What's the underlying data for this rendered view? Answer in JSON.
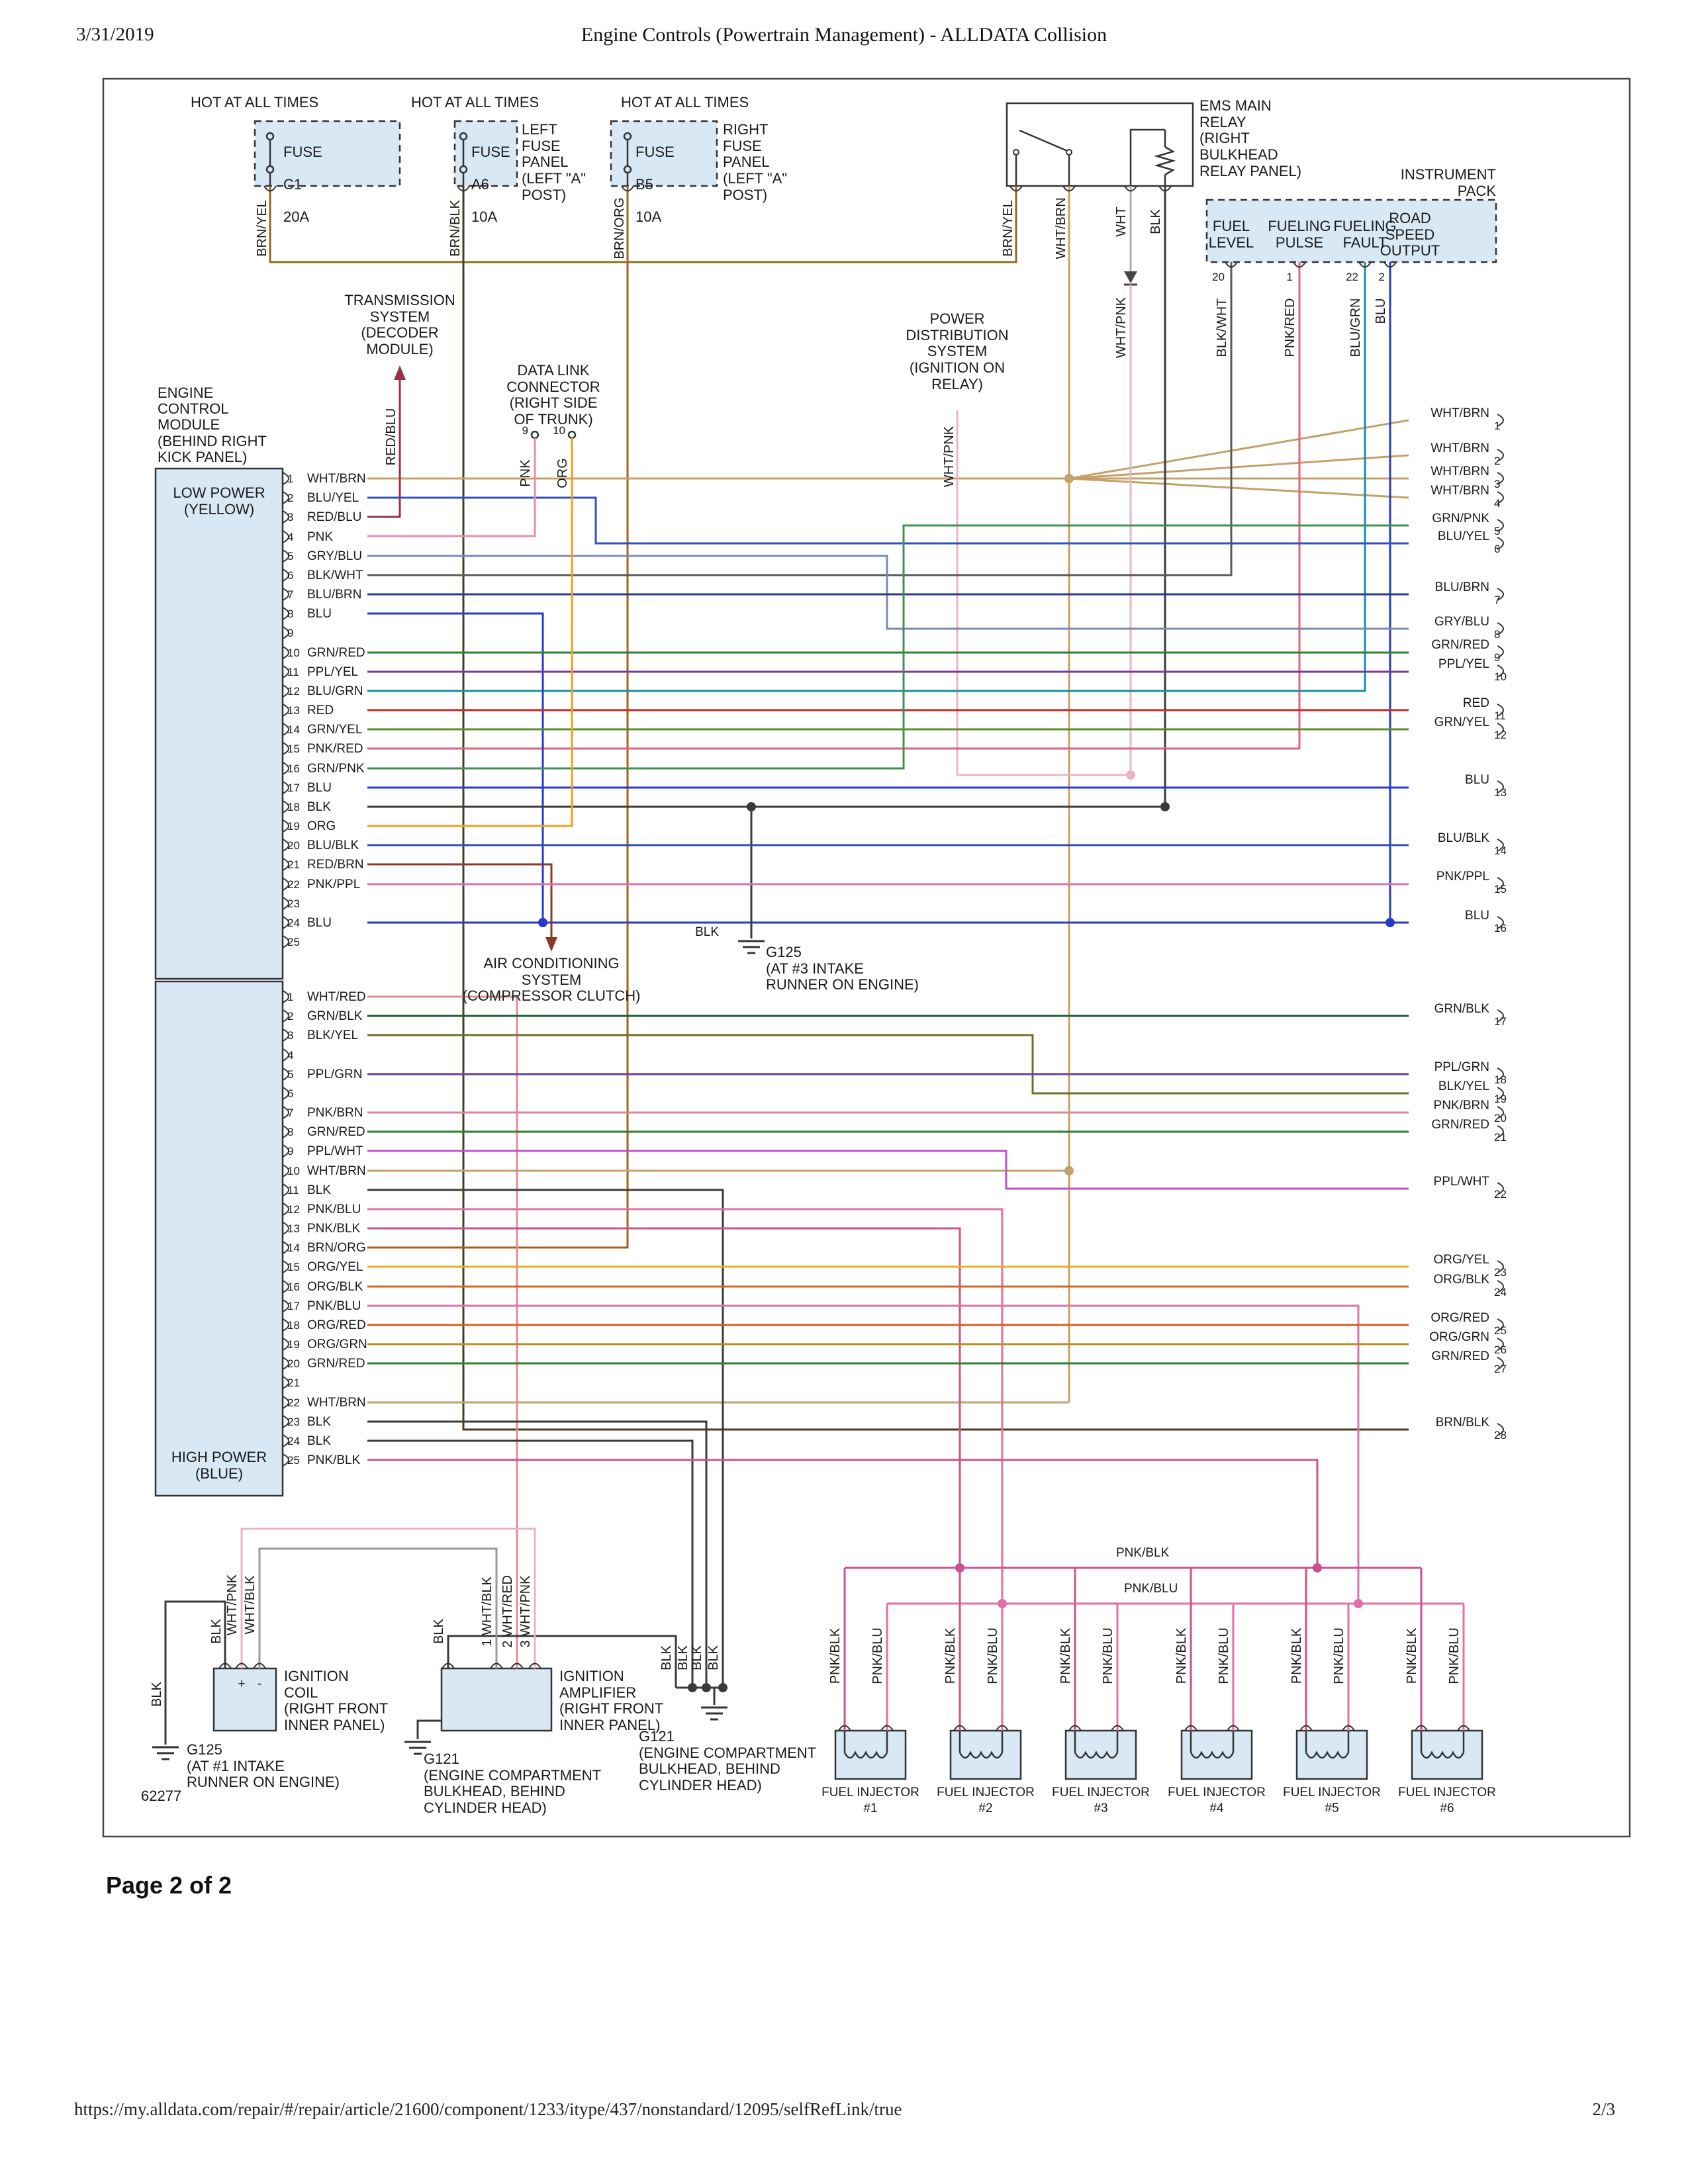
{
  "page": {
    "date": "3/31/2019",
    "title": "Engine Controls (Powertrain Management) - ALLDATA Collision",
    "page_label": "Page 2 of 2",
    "footer_url": "https://my.alldata.com/repair/#/repair/article/21600/component/1233/itype/437/nonstandard/12095/selfRefLink/true",
    "footer_page": "2/3",
    "diagram_number": "62277"
  },
  "top": {
    "hot_label": "HOT AT ALL TIMES",
    "fuses": [
      {
        "label": "FUSE",
        "id": "C1",
        "amps": "20A"
      },
      {
        "label": "FUSE",
        "id": "A6",
        "amps": "10A"
      },
      {
        "label": "FUSE",
        "id": "B5",
        "amps": "10A"
      }
    ],
    "left_panel": "LEFT\nFUSE\nPANEL\n(LEFT \"A\"\nPOST)",
    "right_panel": "RIGHT\nFUSE\nPANEL\n(LEFT \"A\"\nPOST)",
    "ems_relay": "EMS MAIN\nRELAY\n(RIGHT\nBULKHEAD\nRELAY PANEL)",
    "instrument_pack": "INSTRUMENT\nPACK",
    "instrument_signals": [
      "FUEL\nLEVEL",
      "FUELING\nPULSE",
      "FUELING\nFAULT",
      "ROAD\nSPEED\nOUTPUT"
    ],
    "instrument_pins": [
      "20",
      "1",
      "22",
      "2"
    ]
  },
  "components": {
    "ecm": "ENGINE\nCONTROL\nMODULE\n(BEHIND RIGHT\nKICK PANEL)",
    "low_power": "LOW POWER\n(YELLOW)",
    "high_power": "HIGH POWER\n(BLUE)",
    "transmission": "TRANSMISSION\nSYSTEM\n(DECODER\nMODULE)",
    "dlc": "DATA LINK\nCONNECTOR\n(RIGHT SIDE\nOF TRUNK)",
    "pds": "POWER\nDISTRIBUTION\nSYSTEM\n(IGNITION ON\nRELAY)",
    "ac": "AIR CONDITIONING\nSYSTEM\n(COMPRESSOR CLUTCH)",
    "g125_3": "G125\n(AT #3 INTAKE\nRUNNER ON ENGINE)",
    "g125_1": "G125\n(AT #1 INTAKE\nRUNNER ON ENGINE)",
    "g121": "G121\n(ENGINE COMPARTMENT\nBULKHEAD, BEHIND\nCYLINDER HEAD)",
    "coil": "IGNITION\nCOIL\n(RIGHT FRONT\nINNER PANEL)",
    "amp": "IGNITION\nAMPLIFIER\n(RIGHT FRONT\nINNER PANEL)"
  },
  "ecm_low_pins": [
    {
      "n": "1",
      "w": "WHT/BRN"
    },
    {
      "n": "2",
      "w": "BLU/YEL"
    },
    {
      "n": "3",
      "w": "RED/BLU"
    },
    {
      "n": "4",
      "w": "PNK"
    },
    {
      "n": "5",
      "w": "GRY/BLU"
    },
    {
      "n": "6",
      "w": "BLK/WHT"
    },
    {
      "n": "7",
      "w": "BLU/BRN"
    },
    {
      "n": "8",
      "w": "BLU"
    },
    {
      "n": "9",
      "w": ""
    },
    {
      "n": "10",
      "w": "GRN/RED"
    },
    {
      "n": "11",
      "w": "PPL/YEL"
    },
    {
      "n": "12",
      "w": "BLU/GRN"
    },
    {
      "n": "13",
      "w": "RED"
    },
    {
      "n": "14",
      "w": "GRN/YEL"
    },
    {
      "n": "15",
      "w": "PNK/RED"
    },
    {
      "n": "16",
      "w": "GRN/PNK"
    },
    {
      "n": "17",
      "w": "BLU"
    },
    {
      "n": "18",
      "w": "BLK"
    },
    {
      "n": "19",
      "w": "ORG"
    },
    {
      "n": "20",
      "w": "BLU/BLK"
    },
    {
      "n": "21",
      "w": "RED/BRN"
    },
    {
      "n": "22",
      "w": "PNK/PPL"
    },
    {
      "n": "23",
      "w": ""
    },
    {
      "n": "24",
      "w": "BLU"
    },
    {
      "n": "25",
      "w": ""
    }
  ],
  "ecm_high_pins": [
    {
      "n": "1",
      "w": "WHT/RED"
    },
    {
      "n": "2",
      "w": "GRN/BLK"
    },
    {
      "n": "3",
      "w": "BLK/YEL"
    },
    {
      "n": "4",
      "w": ""
    },
    {
      "n": "5",
      "w": "PPL/GRN"
    },
    {
      "n": "6",
      "w": ""
    },
    {
      "n": "7",
      "w": "PNK/BRN"
    },
    {
      "n": "8",
      "w": "GRN/RED"
    },
    {
      "n": "9",
      "w": "PPL/WHT"
    },
    {
      "n": "10",
      "w": "WHT/BRN"
    },
    {
      "n": "11",
      "w": "BLK"
    },
    {
      "n": "12",
      "w": "PNK/BLU"
    },
    {
      "n": "13",
      "w": "PNK/BLK"
    },
    {
      "n": "14",
      "w": "BRN/ORG"
    },
    {
      "n": "15",
      "w": "ORG/YEL"
    },
    {
      "n": "16",
      "w": "ORG/BLK"
    },
    {
      "n": "17",
      "w": "PNK/BLU"
    },
    {
      "n": "18",
      "w": "ORG/RED"
    },
    {
      "n": "19",
      "w": "ORG/GRN"
    },
    {
      "n": "20",
      "w": "GRN/RED"
    },
    {
      "n": "21",
      "w": ""
    },
    {
      "n": "22",
      "w": "WHT/BRN"
    },
    {
      "n": "23",
      "w": "BLK"
    },
    {
      "n": "24",
      "w": "BLK"
    },
    {
      "n": "25",
      "w": "PNK/BLK"
    }
  ],
  "right_labels": [
    {
      "n": "1",
      "w": "WHT/BRN"
    },
    {
      "n": "2",
      "w": "WHT/BRN"
    },
    {
      "n": "3",
      "w": "WHT/BRN"
    },
    {
      "n": "4",
      "w": "WHT/BRN"
    },
    {
      "n": "5",
      "w": "GRN/PNK"
    },
    {
      "n": "6",
      "w": "BLU/YEL"
    },
    {
      "n": "7",
      "w": "BLU/BRN"
    },
    {
      "n": "8",
      "w": "GRY/BLU"
    },
    {
      "n": "9",
      "w": "GRN/RED"
    },
    {
      "n": "10",
      "w": "PPL/YEL"
    },
    {
      "n": "11",
      "w": "RED"
    },
    {
      "n": "12",
      "w": "GRN/YEL"
    },
    {
      "n": "13",
      "w": "BLU"
    },
    {
      "n": "14",
      "w": "BLU/BLK"
    },
    {
      "n": "15",
      "w": "PNK/PPL"
    },
    {
      "n": "16",
      "w": "BLU"
    },
    {
      "n": "17",
      "w": "GRN/BLK"
    },
    {
      "n": "18",
      "w": "PPL/GRN"
    },
    {
      "n": "19",
      "w": "BLK/YEL"
    },
    {
      "n": "20",
      "w": "PNK/BRN"
    },
    {
      "n": "21",
      "w": "GRN/RED"
    },
    {
      "n": "22",
      "w": "PPL/WHT"
    },
    {
      "n": "23",
      "w": "ORG/YEL"
    },
    {
      "n": "24",
      "w": "ORG/BLK"
    },
    {
      "n": "25",
      "w": "ORG/RED"
    },
    {
      "n": "26",
      "w": "ORG/GRN"
    },
    {
      "n": "27",
      "w": "GRN/RED"
    },
    {
      "n": "28",
      "w": "BRN/BLK"
    }
  ],
  "wire_labels": {
    "brn_yel": "BRN/YEL",
    "brn_blk": "BRN/BLK",
    "brn_org": "BRN/ORG",
    "wht_brn": "WHT/BRN",
    "wht": "WHT",
    "blk": "BLK",
    "wht_pnk": "WHT/PNK",
    "blk_wht": "BLK/WHT",
    "pnk_red": "PNK/RED",
    "blu_grn": "BLU/GRN",
    "blu": "BLU",
    "red_blu": "RED/BLU",
    "pnk": "PNK",
    "org": "ORG",
    "wht_blk": "WHT/BLK",
    "amp1": "1 WHT/BLK",
    "amp2": "2 WHT/RED",
    "amp3": "3 WHT/PNK",
    "dlc9": "9",
    "dlc10": "10",
    "plus": "+",
    "minus": "-",
    "pnk_blk": "PNK/BLK",
    "pnk_blu": "PNK/BLU"
  },
  "injectors": {
    "label": "FUEL INJECTOR",
    "numbers": [
      "#1",
      "#2",
      "#3",
      "#4",
      "#5",
      "#6"
    ],
    "left_wire": "PNK/BLK",
    "right_wire": "PNK/BLU"
  },
  "colors": {
    "BRN/YEL": "#8a6d1a",
    "BRN/BLK": "#4a3a20",
    "BRN/ORG": "#a3611e",
    "WHT/BRN": "#c4a06a",
    "WHT": "#b0b0b0",
    "WHT/PNK": "#e8b4c8",
    "WHT/BLK": "#9a9a9a",
    "WHT/RED": "#d89090",
    "BLK": "#3a3a3a",
    "BLK/WHT": "#5a5a5a",
    "BLK/YEL": "#6e6e2e",
    "PNK": "#f08aaa",
    "PNK/RED": "#e4607a",
    "PNK/PPL": "#d873b8",
    "PNK/BRN": "#d4889a",
    "PNK/BLU": "#e070aa",
    "PNK/BLK": "#cc5090",
    "ORG": "#efa020",
    "ORG/YEL": "#e8b020",
    "ORG/BLK": "#d2691e",
    "ORG/RED": "#e25822",
    "ORG/GRN": "#c08a20",
    "RED": "#cc2626",
    "RED/BLU": "#993344",
    "RED/BRN": "#8b3a2a",
    "GRN/RED": "#2f7d32",
    "GRN/YEL": "#5a8c2a",
    "GRN/PNK": "#3f9050",
    "GRN/BLK": "#1f5f2f",
    "BLU": "#2838c8",
    "BLU/YEL": "#3050c0",
    "BLU/GRN": "#1090a0",
    "BLU/BRN": "#283890",
    "BLU/BLK": "#2f4fae",
    "GRY/BLU": "#7a8ab0",
    "PPL/YEL": "#7a3a9a",
    "PPL/GRN": "#6a3fa0",
    "PPL/WHT": "#c050cc",
    "box_fill": "#d9e8f5",
    "line": "#333333"
  }
}
